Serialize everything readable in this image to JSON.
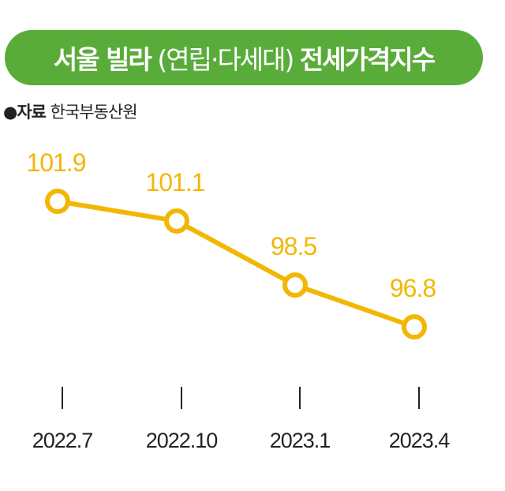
{
  "chart_data": {
    "type": "line",
    "title_bold_1": "서울 빌라",
    "title_light": "(연립·다세대)",
    "title_bold_2": "전세가격지수",
    "source_label": "●자료",
    "source_value": "한국부동산원",
    "categories": [
      "2022.7",
      "2022.10",
      "2023.1",
      "2023.4"
    ],
    "values": [
      101.9,
      101.1,
      98.5,
      96.8
    ],
    "data_labels": [
      "101.9",
      "101.1",
      "98.5",
      "96.8"
    ],
    "grid": false,
    "colors": {
      "line": "#f2b705",
      "title_bg": "#5aac3a",
      "label": "#f2b705"
    }
  }
}
